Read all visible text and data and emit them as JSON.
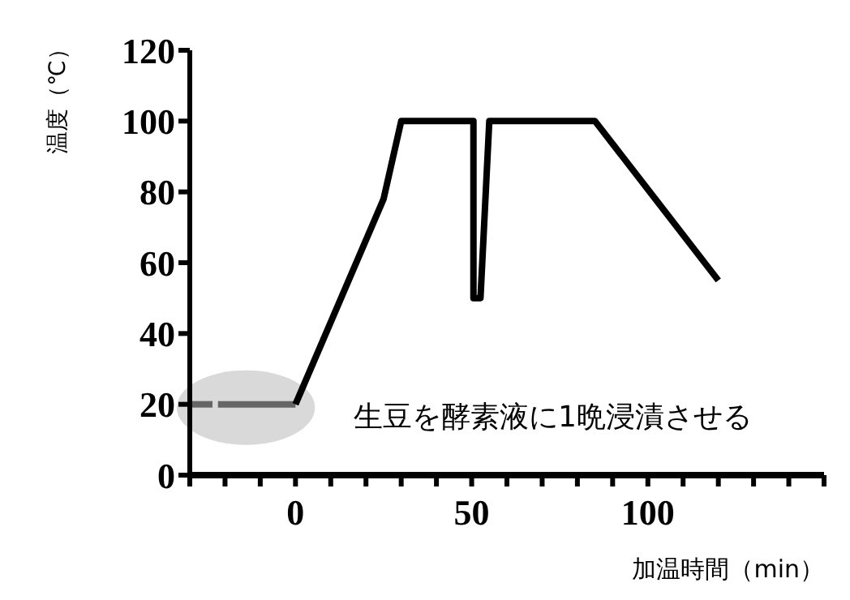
{
  "chart_data": {
    "type": "line",
    "xlabel": "加温時間（min）",
    "ylabel": "温度（℃）",
    "annotations": [
      "生豆を酵素液に1晩浸漬させる"
    ],
    "series": [
      {
        "color": "#666666",
        "line_style": "dashed",
        "x": [
          -30,
          -22
        ],
        "values": [
          20,
          20
        ]
      },
      {
        "color": "#666666",
        "line_style": "solid",
        "x": [
          -22,
          0
        ],
        "values": [
          20,
          20
        ]
      },
      {
        "color": "#000000",
        "line_style": "solid",
        "x": [
          0,
          25,
          30,
          50.5,
          50.5,
          52.5,
          55,
          85,
          120
        ],
        "values": [
          20,
          78,
          100,
          100,
          50,
          50,
          100,
          100,
          55
        ]
      }
    ],
    "xlim": [
      -30,
      150
    ],
    "xticks": [
      {
        "value": -30,
        "label": null
      },
      {
        "value": -20,
        "label": null
      },
      {
        "value": -10,
        "label": null
      },
      0,
      {
        "value": 10,
        "label": null
      },
      {
        "value": 20,
        "label": null
      },
      {
        "value": 30,
        "label": null
      },
      {
        "value": 40,
        "label": null
      },
      50,
      {
        "value": 60,
        "label": null
      },
      {
        "value": 70,
        "label": null
      },
      {
        "value": 80,
        "label": null
      },
      {
        "value": 90,
        "label": null
      },
      100,
      {
        "value": 110,
        "label": null
      },
      {
        "value": 120,
        "label": null
      },
      {
        "value": 130,
        "label": null
      },
      {
        "value": 140,
        "label": null
      },
      {
        "value": 150,
        "label": null
      }
    ],
    "ylim": [
      0,
      120
    ],
    "yticks": [
      0,
      20,
      40,
      60,
      80,
      100,
      120
    ],
    "grid": false,
    "legend": false,
    "marker": "none"
  }
}
